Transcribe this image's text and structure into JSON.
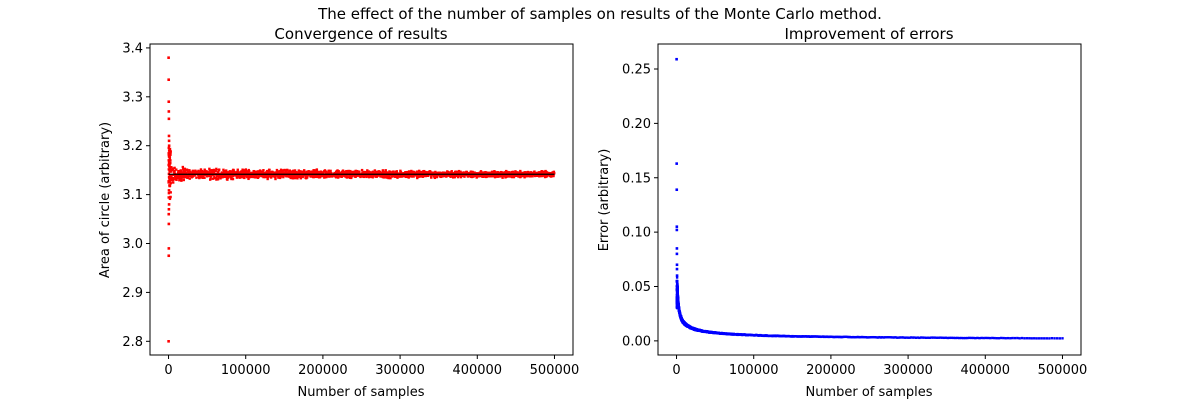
{
  "figure": {
    "suptitle": "The effect of the number of samples on results of the Monte Carlo method."
  },
  "chart_data": [
    {
      "type": "scatter",
      "title": "Convergence of results",
      "xlabel": "Number of samples",
      "ylabel": "Area of circle (arbitrary)",
      "xlim": [
        -24000,
        524000
      ],
      "ylim": [
        2.772,
        3.408
      ],
      "xticks": [
        0,
        100000,
        200000,
        300000,
        400000,
        500000
      ],
      "yticks": [
        2.8,
        2.9,
        3.0,
        3.1,
        3.2,
        3.3,
        3.4
      ],
      "xtick_labels": [
        "0",
        "100000",
        "200000",
        "300000",
        "400000",
        "500000"
      ],
      "ytick_labels": [
        "2.8",
        "2.9",
        "3.0",
        "3.1",
        "3.2",
        "3.3",
        "3.4"
      ],
      "marker_color": "#ff0000",
      "reference_line": {
        "y": 3.14159,
        "x": [
          0,
          500000
        ],
        "color": "#000000"
      },
      "series": [
        {
          "band": {
            "center": 3.14159,
            "halfwidth_samples": [
              [
                1000,
                0.04
              ],
              [
                2000,
                0.035
              ],
              [
                5000,
                0.028
              ],
              [
                10000,
                0.022
              ],
              [
                20000,
                0.018
              ],
              [
                50000,
                0.015
              ],
              [
                100000,
                0.013
              ],
              [
                200000,
                0.011
              ],
              [
                300000,
                0.009
              ],
              [
                400000,
                0.008
              ],
              [
                500000,
                0.008
              ]
            ]
          },
          "outliers": [
            [
              100,
              3.38
            ],
            [
              200,
              3.335
            ],
            [
              300,
              3.29
            ],
            [
              400,
              3.27
            ],
            [
              500,
              3.255
            ],
            [
              600,
              3.22
            ],
            [
              700,
              3.21
            ],
            [
              800,
              3.2
            ],
            [
              900,
              3.19
            ],
            [
              300,
              3.06
            ],
            [
              500,
              3.07
            ],
            [
              700,
              3.08
            ],
            [
              400,
              3.04
            ],
            [
              400,
              2.99
            ],
            [
              300,
              2.975
            ],
            [
              100,
              2.8
            ]
          ]
        }
      ]
    },
    {
      "type": "scatter",
      "title": "Improvement of errors",
      "xlabel": "Number of samples",
      "ylabel": "Error (arbitrary)",
      "xlim": [
        -24000,
        524000
      ],
      "ylim": [
        -0.013,
        0.273
      ],
      "xticks": [
        0,
        100000,
        200000,
        300000,
        400000,
        500000
      ],
      "yticks": [
        0.0,
        0.05,
        0.1,
        0.15,
        0.2,
        0.25
      ],
      "xtick_labels": [
        "0",
        "100000",
        "200000",
        "300000",
        "400000",
        "500000"
      ],
      "ytick_labels": [
        "0.00",
        "0.05",
        "0.10",
        "0.15",
        "0.20",
        "0.25"
      ],
      "marker_color": "#0000ff",
      "series": [
        {
          "curve": [
            [
              1000,
              0.052
            ],
            [
              2000,
              0.037
            ],
            [
              3000,
              0.03
            ],
            [
              5000,
              0.023
            ],
            [
              8000,
              0.018
            ],
            [
              12000,
              0.015
            ],
            [
              20000,
              0.0116
            ],
            [
              35000,
              0.0088
            ],
            [
              60000,
              0.0067
            ],
            [
              100000,
              0.0052
            ],
            [
              150000,
              0.0042
            ],
            [
              200000,
              0.0037
            ],
            [
              300000,
              0.003
            ],
            [
              400000,
              0.0026
            ],
            [
              500000,
              0.0023
            ]
          ],
          "outliers": [
            [
              100,
              0.259
            ],
            [
              200,
              0.163
            ],
            [
              300,
              0.139
            ],
            [
              400,
              0.105
            ],
            [
              400,
              0.102
            ],
            [
              500,
              0.085
            ],
            [
              500,
              0.08
            ],
            [
              600,
              0.07
            ],
            [
              600,
              0.066
            ],
            [
              700,
              0.06
            ],
            [
              800,
              0.055
            ]
          ]
        }
      ]
    }
  ]
}
